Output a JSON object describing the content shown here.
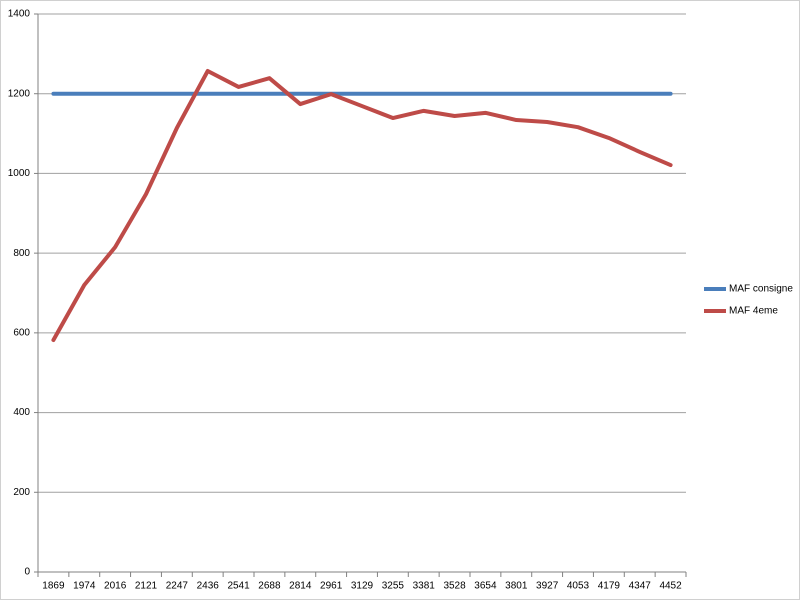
{
  "chart_data": {
    "type": "line",
    "categories": [
      "1869",
      "1974",
      "2016",
      "2121",
      "2247",
      "2436",
      "2541",
      "2688",
      "2814",
      "2961",
      "3129",
      "3255",
      "3381",
      "3528",
      "3654",
      "3801",
      "3927",
      "4053",
      "4179",
      "4347",
      "4452"
    ],
    "series": [
      {
        "name": "MAF consigne",
        "color": "#4a7ebb",
        "values": [
          1200,
          1200,
          1200,
          1200,
          1200,
          1200,
          1200,
          1200,
          1200,
          1200,
          1200,
          1200,
          1200,
          1200,
          1200,
          1200,
          1200,
          1200,
          1200,
          1200,
          1200
        ]
      },
      {
        "name": "MAF 4eme",
        "color": "#be4b48",
        "values": [
          582,
          720,
          815,
          948,
          1114,
          1257,
          1217,
          1239,
          1174,
          1199,
          1169,
          1139,
          1157,
          1144,
          1152,
          1134,
          1129,
          1116,
          1089,
          1054,
          1021
        ]
      }
    ],
    "ylim": [
      0,
      1400
    ],
    "yticks": [
      0,
      200,
      400,
      600,
      800,
      1000,
      1200,
      1400
    ],
    "grid": true,
    "legend": "right"
  }
}
